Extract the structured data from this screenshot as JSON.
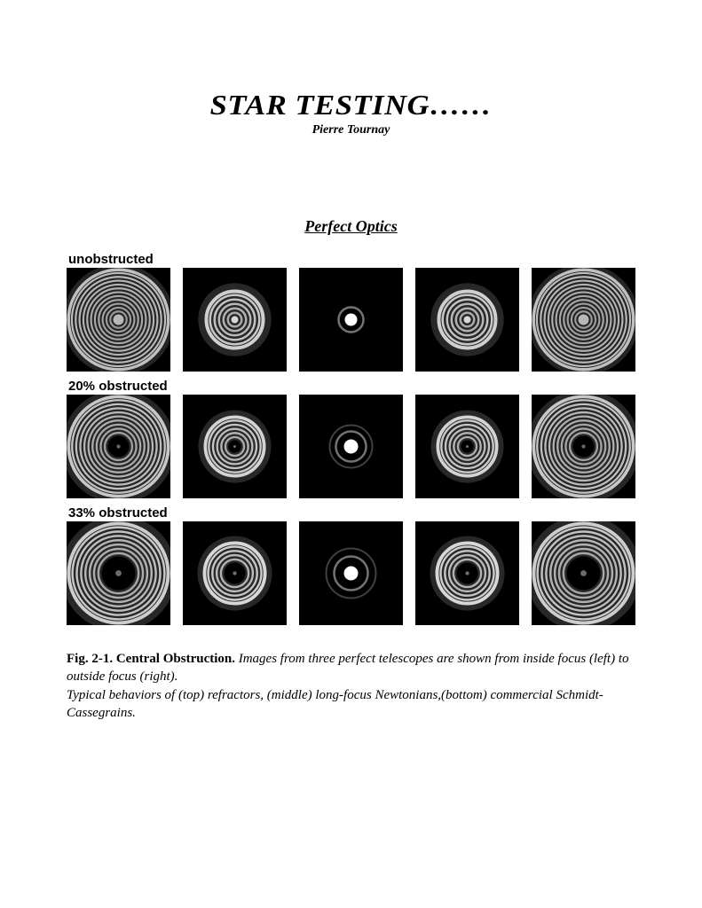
{
  "title": "STAR TESTING……",
  "author": "Pierre Tournay",
  "section_heading": "Perfect Optics",
  "figure": {
    "type": "diagram-grid",
    "tile_size": 117,
    "gap": 14,
    "background_color": "#000000",
    "rows": [
      {
        "label": "unobstructed",
        "tiles": [
          {
            "rings": 12,
            "outer_r": 58,
            "inner_r": 6,
            "obstruction": 0,
            "ring_color": "#c8c8c8",
            "gap_color": "#3a3a3a",
            "edge_glow": 8,
            "center_bright": 0.9
          },
          {
            "rings": 6,
            "outer_r": 34,
            "inner_r": 4,
            "obstruction": 0,
            "ring_color": "#d8d8d8",
            "gap_color": "#2a2a2a",
            "edge_glow": 12,
            "center_bright": 1.0
          },
          {
            "rings": 1,
            "outer_r": 7,
            "inner_r": 0,
            "obstruction": 0,
            "ring_color": "#ffffff",
            "gap_color": "#000000",
            "edge_glow": 4,
            "center_bright": 1.0,
            "halo_r": 14
          },
          {
            "rings": 6,
            "outer_r": 34,
            "inner_r": 4,
            "obstruction": 0,
            "ring_color": "#d8d8d8",
            "gap_color": "#2a2a2a",
            "edge_glow": 12,
            "center_bright": 1.0
          },
          {
            "rings": 12,
            "outer_r": 58,
            "inner_r": 6,
            "obstruction": 0,
            "ring_color": "#c8c8c8",
            "gap_color": "#3a3a3a",
            "edge_glow": 8,
            "center_bright": 0.9
          }
        ]
      },
      {
        "label": "20% obstructed",
        "tiles": [
          {
            "rings": 10,
            "outer_r": 58,
            "inner_r": 12,
            "obstruction": 12,
            "ring_color": "#d0d0d0",
            "gap_color": "#303030",
            "edge_glow": 10,
            "center_bright": 0.0
          },
          {
            "rings": 6,
            "outer_r": 35,
            "inner_r": 7,
            "obstruction": 7,
            "ring_color": "#dcdcdc",
            "gap_color": "#282828",
            "edge_glow": 10,
            "center_bright": 0.0
          },
          {
            "rings": 1,
            "outer_r": 8,
            "inner_r": 0,
            "obstruction": 0,
            "ring_color": "#ffffff",
            "gap_color": "#000000",
            "edge_glow": 4,
            "center_bright": 1.0,
            "halo_r": 17,
            "halo2_r": 24
          },
          {
            "rings": 6,
            "outer_r": 35,
            "inner_r": 7,
            "obstruction": 7,
            "ring_color": "#dcdcdc",
            "gap_color": "#282828",
            "edge_glow": 10,
            "center_bright": 0.0
          },
          {
            "rings": 10,
            "outer_r": 58,
            "inner_r": 12,
            "obstruction": 12,
            "ring_color": "#d0d0d0",
            "gap_color": "#303030",
            "edge_glow": 10,
            "center_bright": 0.0
          }
        ]
      },
      {
        "label": "33% obstructed",
        "tiles": [
          {
            "rings": 8,
            "outer_r": 58,
            "inner_r": 19,
            "obstruction": 19,
            "ring_color": "#d6d6d6",
            "gap_color": "#2a2a2a",
            "edge_glow": 12,
            "center_bright": 0.0
          },
          {
            "rings": 5,
            "outer_r": 36,
            "inner_r": 12,
            "obstruction": 12,
            "ring_color": "#e0e0e0",
            "gap_color": "#242424",
            "edge_glow": 10,
            "center_bright": 0.0
          },
          {
            "rings": 1,
            "outer_r": 8,
            "inner_r": 0,
            "obstruction": 0,
            "ring_color": "#ffffff",
            "gap_color": "#000000",
            "edge_glow": 5,
            "center_bright": 1.0,
            "halo_r": 19,
            "halo2_r": 28
          },
          {
            "rings": 5,
            "outer_r": 36,
            "inner_r": 12,
            "obstruction": 12,
            "ring_color": "#e0e0e0",
            "gap_color": "#242424",
            "edge_glow": 10,
            "center_bright": 0.0
          },
          {
            "rings": 8,
            "outer_r": 58,
            "inner_r": 19,
            "obstruction": 19,
            "ring_color": "#d6d6d6",
            "gap_color": "#2a2a2a",
            "edge_glow": 12,
            "center_bright": 0.0
          }
        ]
      }
    ]
  },
  "caption": {
    "lead": "Fig. 2-1. Central Obstruction. ",
    "rest": "Images from three perfect telescopes are shown from inside focus (left) to outside focus (right).\n Typical behaviors of (top) refractors, (middle) long-focus Newtonians,(bottom) commercial Schmidt-Cassegrains."
  }
}
